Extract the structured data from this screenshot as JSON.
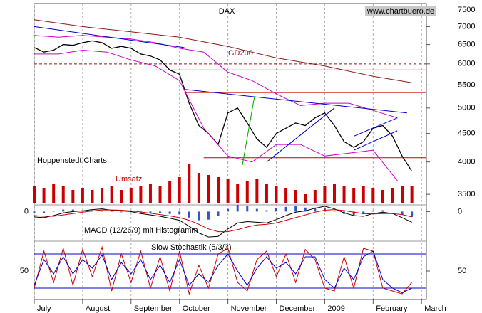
{
  "chart_data": [
    {
      "type": "line",
      "title": "DAX",
      "credit": "www.chartbuero.de",
      "footnote": "Hoppenstedt Charts",
      "log_scale": true,
      "grid": true,
      "xlim": [
        0,
        8.1
      ],
      "ylim": [
        3350,
        7700
      ],
      "yticks": [
        3500,
        4000,
        4500,
        5000,
        5500,
        6000,
        6500,
        7000,
        7500
      ],
      "x": [
        0,
        0.2,
        0.4,
        0.6,
        0.8,
        1,
        1.2,
        1.4,
        1.6,
        1.8,
        2,
        2.2,
        2.4,
        2.6,
        2.8,
        3,
        3.2,
        3.4,
        3.6,
        3.8,
        4,
        4.2,
        4.4,
        4.6,
        4.8,
        5,
        5.2,
        5.4,
        5.6,
        5.8,
        6,
        6.2,
        6.4,
        6.6,
        6.8,
        7,
        7.2,
        7.4,
        7.6,
        7.8
      ],
      "series": [
        {
          "color": "#000000",
          "values": [
            6420,
            6300,
            6350,
            6500,
            6480,
            6550,
            6600,
            6550,
            6400,
            6450,
            6400,
            6250,
            6200,
            6100,
            5850,
            5750,
            5100,
            4650,
            4500,
            4300,
            4900,
            5000,
            4700,
            4400,
            4250,
            4500,
            4600,
            4700,
            4650,
            4800,
            4900,
            4650,
            4350,
            4250,
            4350,
            4600,
            4650,
            4450,
            4100,
            3850
          ]
        },
        {
          "name": "GD200",
          "color": "#8b1a1a",
          "x": [
            0,
            1,
            2,
            3,
            4,
            5,
            6,
            7,
            7.8
          ],
          "values": [
            7200,
            7000,
            6850,
            6700,
            6450,
            6150,
            5950,
            5700,
            5550
          ]
        },
        {
          "color": "#cc00cc",
          "x": [
            0,
            0.5,
            1,
            1.5,
            2,
            2.5,
            3,
            3.5,
            4,
            4.5,
            5,
            5.5,
            6,
            6.5,
            7,
            7.5
          ],
          "values": [
            6750,
            6700,
            6750,
            6700,
            6650,
            6550,
            6400,
            6300,
            5800,
            5600,
            5300,
            5050,
            5100,
            5100,
            4950,
            4800
          ]
        },
        {
          "color": "#cc00cc",
          "x": [
            0,
            0.5,
            1,
            1.5,
            2,
            2.5,
            3,
            3.5,
            4,
            4.5,
            5,
            5.5,
            6,
            6.5,
            7,
            7.5
          ],
          "values": [
            6250,
            6250,
            6350,
            6300,
            6100,
            5950,
            5600,
            4600,
            4100,
            4000,
            4300,
            4300,
            4100,
            4150,
            4200,
            3700
          ]
        }
      ],
      "hlines": [
        {
          "value": 6000,
          "from": 0,
          "color": "#8b1a1a",
          "dashed": true
        },
        {
          "value": 5850,
          "from": 2.5,
          "color": "#cc0000",
          "dashed": false
        },
        {
          "value": 5330,
          "from": 3.1,
          "color": "#cc0000",
          "dashed": false
        },
        {
          "value": 4070,
          "from": 3.5,
          "color": "#cc0000",
          "dashed": false
        }
      ],
      "trendlines": [
        {
          "points": [
            [
              0,
              7000
            ],
            [
              3.1,
              6420
            ]
          ],
          "color": "#0000cc"
        },
        {
          "points": [
            [
              3.1,
              5400
            ],
            [
              7.7,
              4900
            ]
          ],
          "color": "#0000cc"
        },
        {
          "points": [
            [
              4.8,
              4000
            ],
            [
              6.2,
              5000
            ]
          ],
          "color": "#0000cc"
        },
        {
          "points": [
            [
              6.6,
              4450
            ],
            [
              7.5,
              4800
            ]
          ],
          "color": "#0000cc"
        },
        {
          "points": [
            [
              6.6,
              4200
            ],
            [
              7.5,
              4550
            ]
          ],
          "color": "#0000cc"
        },
        {
          "points": [
            [
              4.3,
              3950
            ],
            [
              4.55,
              5250
            ]
          ],
          "color": "#00aa00"
        }
      ]
    },
    {
      "type": "bar",
      "label": "Umsatz",
      "color": "#cc0000",
      "xlim": [
        0,
        8.1
      ],
      "ylim": [
        0,
        100
      ],
      "x": [
        0,
        0.2,
        0.4,
        0.6,
        0.8,
        1,
        1.2,
        1.4,
        1.6,
        1.8,
        2,
        2.2,
        2.4,
        2.6,
        2.8,
        3,
        3.2,
        3.4,
        3.6,
        3.8,
        4,
        4.2,
        4.4,
        4.6,
        4.8,
        5,
        5.2,
        5.4,
        5.6,
        5.8,
        6,
        6.2,
        6.4,
        6.6,
        6.8,
        7,
        7.2,
        7.4,
        7.6,
        7.8
      ],
      "values": [
        40,
        35,
        45,
        40,
        30,
        35,
        30,
        35,
        40,
        30,
        35,
        40,
        45,
        40,
        50,
        60,
        90,
        70,
        65,
        60,
        55,
        45,
        50,
        55,
        45,
        40,
        35,
        30,
        20,
        30,
        40,
        45,
        40,
        35,
        40,
        35,
        30,
        35,
        40,
        40
      ]
    },
    {
      "type": "line",
      "label": "MACD (12/26/9) mit Histogramm",
      "xlim": [
        0,
        8.1
      ],
      "ylim": [
        -400,
        100
      ],
      "yticks": [
        0
      ],
      "x": [
        0,
        0.2,
        0.4,
        0.6,
        0.8,
        1,
        1.2,
        1.4,
        1.6,
        1.8,
        2,
        2.2,
        2.4,
        2.6,
        2.8,
        3,
        3.2,
        3.4,
        3.6,
        3.8,
        4,
        4.2,
        4.4,
        4.6,
        4.8,
        5,
        5.2,
        5.4,
        5.6,
        5.8,
        6,
        6.2,
        6.4,
        6.6,
        6.8,
        7,
        7.2,
        7.4,
        7.6,
        7.8
      ],
      "histogram": {
        "color": "#3355cc",
        "values": [
          -20,
          -20,
          10,
          30,
          30,
          20,
          20,
          15,
          -5,
          -10,
          -10,
          -25,
          -25,
          -25,
          -35,
          -40,
          -90,
          -130,
          -120,
          -70,
          40,
          100,
          80,
          40,
          20,
          50,
          70,
          80,
          60,
          60,
          60,
          10,
          -35,
          -50,
          -40,
          5,
          20,
          0,
          -45,
          -80
        ]
      },
      "series": [
        {
          "color": "#000000",
          "values": [
            -80,
            -90,
            -60,
            -20,
            0,
            10,
            30,
            40,
            20,
            10,
            0,
            -30,
            -50,
            -70,
            -100,
            -130,
            -220,
            -320,
            -380,
            -370,
            -260,
            -170,
            -150,
            -160,
            -170,
            -120,
            -60,
            -10,
            10,
            50,
            80,
            40,
            -20,
            -60,
            -70,
            -30,
            -10,
            -30,
            -90,
            -160
          ]
        },
        {
          "color": "#cc0000",
          "values": [
            -60,
            -70,
            -70,
            -50,
            -30,
            -10,
            10,
            25,
            25,
            20,
            10,
            -5,
            -25,
            -45,
            -65,
            -90,
            -130,
            -190,
            -260,
            -300,
            -300,
            -270,
            -230,
            -200,
            -190,
            -170,
            -130,
            -90,
            -50,
            -10,
            20,
            30,
            15,
            -10,
            -30,
            -35,
            -30,
            -30,
            -45,
            -80
          ]
        }
      ]
    },
    {
      "type": "line",
      "label": "Slow Stochastik (5/3/3)",
      "xlim": [
        0,
        8.1
      ],
      "ylim": [
        0,
        100
      ],
      "yticks": [
        50
      ],
      "hlines": [
        {
          "value": 80,
          "color": "#0000cc"
        },
        {
          "value": 20,
          "color": "#0000cc"
        }
      ],
      "xticks": [
        {
          "value": 0,
          "label": "July"
        },
        {
          "value": 1,
          "label": "August"
        },
        {
          "value": 2,
          "label": "September"
        },
        {
          "value": 3,
          "label": "October"
        },
        {
          "value": 4,
          "label": "November"
        },
        {
          "value": 5,
          "label": "December"
        },
        {
          "value": 6,
          "label": "2009"
        },
        {
          "value": 7,
          "label": "February"
        },
        {
          "value": 8,
          "label": "March"
        }
      ],
      "x": [
        0,
        0.2,
        0.4,
        0.6,
        0.8,
        1,
        1.2,
        1.4,
        1.6,
        1.8,
        2,
        2.2,
        2.4,
        2.6,
        2.8,
        3,
        3.2,
        3.4,
        3.6,
        3.8,
        4,
        4.2,
        4.4,
        4.6,
        4.8,
        5,
        5.2,
        5.4,
        5.6,
        5.8,
        6,
        6.2,
        6.4,
        6.6,
        6.8,
        7,
        7.2,
        7.4,
        7.6,
        7.8
      ],
      "series": [
        {
          "color": "#cc0000",
          "values": [
            20,
            85,
            30,
            90,
            25,
            88,
            40,
            92,
            15,
            80,
            30,
            85,
            20,
            75,
            15,
            85,
            10,
            60,
            20,
            80,
            90,
            30,
            15,
            70,
            85,
            40,
            80,
            30,
            88,
            70,
            20,
            15,
            75,
            20,
            90,
            85,
            20,
            15,
            10,
            30
          ]
        },
        {
          "color": "#0000cc",
          "values": [
            25,
            70,
            45,
            75,
            45,
            70,
            55,
            78,
            35,
            65,
            45,
            70,
            35,
            60,
            30,
            70,
            25,
            45,
            30,
            60,
            80,
            50,
            25,
            55,
            75,
            55,
            65,
            45,
            75,
            75,
            35,
            20,
            55,
            35,
            75,
            85,
            35,
            20,
            12,
            20
          ]
        }
      ]
    }
  ]
}
